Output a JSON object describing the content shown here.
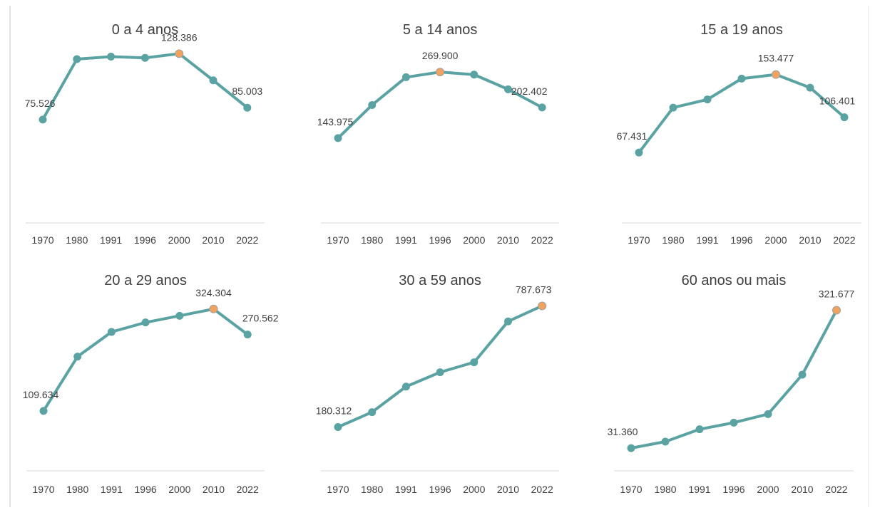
{
  "colors": {
    "line": "#5ba3a3",
    "point": "#5ba3a3",
    "highlight": "#f0a35e",
    "axis": "#d9d9d9",
    "text": "#404040"
  },
  "chart_data": [
    {
      "type": "line",
      "title": "0 a 4 anos",
      "x": [
        "1970",
        "1980",
        "1991",
        "1996",
        "2000",
        "2010",
        "2022"
      ],
      "values": [
        75526,
        124000,
        126000,
        125000,
        128386,
        107000,
        85003
      ],
      "labels": [
        "75.526",
        "",
        "",
        "",
        "128.386",
        "",
        "85.003"
      ],
      "highlight_index": 4,
      "ylim": [
        0,
        160000
      ],
      "grid": false,
      "legend": "none"
    },
    {
      "type": "line",
      "title": "5 a 14 anos",
      "x": [
        "1970",
        "1980",
        "1991",
        "1996",
        "2000",
        "2010",
        "2022"
      ],
      "values": [
        143975,
        207000,
        260000,
        269900,
        265000,
        237000,
        202402
      ],
      "labels": [
        "143.975",
        "",
        "",
        "269.900",
        "",
        "",
        "202.402"
      ],
      "highlight_index": 3,
      "ylim": [
        0,
        380000
      ],
      "grid": false,
      "legend": "none"
    },
    {
      "type": "line",
      "title": "15 a 19 anos",
      "x": [
        "1970",
        "1980",
        "1991",
        "1996",
        "2000",
        "2010",
        "2022"
      ],
      "values": [
        67431,
        117000,
        126000,
        149000,
        153477,
        139000,
        106401
      ],
      "labels": [
        "67.431",
        "",
        "",
        "",
        "153.477",
        "",
        "106.401"
      ],
      "highlight_index": 4,
      "ylim": [
        0,
        220000
      ],
      "grid": false,
      "legend": "none"
    },
    {
      "type": "line",
      "title": "20 a 29 anos",
      "x": [
        "1970",
        "1980",
        "1991",
        "1996",
        "2000",
        "2010",
        "2022"
      ],
      "values": [
        109634,
        224000,
        276000,
        296000,
        310000,
        324304,
        270562
      ],
      "labels": [
        "109.634",
        "",
        "",
        "",
        "",
        "324.304",
        "270.562"
      ],
      "highlight_index": 5,
      "ylim": [
        0,
        420000
      ],
      "grid": false,
      "legend": "none"
    },
    {
      "type": "line",
      "title": "30 a 59 anos",
      "x": [
        "1970",
        "1980",
        "1991",
        "1996",
        "2000",
        "2010",
        "2022"
      ],
      "values": [
        180312,
        255000,
        383000,
        455000,
        505000,
        710000,
        787673
      ],
      "labels": [
        "180.312",
        "",
        "",
        "",
        "",
        "",
        "787.673"
      ],
      "highlight_index": 6,
      "ylim": [
        0,
        1000000
      ],
      "grid": false,
      "legend": "none"
    },
    {
      "type": "line",
      "title": "60 anos ou mais",
      "x": [
        "1970",
        "1980",
        "1991",
        "1996",
        "2000",
        "2010",
        "2022"
      ],
      "values": [
        31360,
        45000,
        71000,
        85000,
        103000,
        186000,
        321677
      ],
      "labels": [
        "31.360",
        "",
        "",
        "",
        "",
        "",
        "321.677"
      ],
      "highlight_index": 6,
      "ylim": [
        0,
        420000
      ],
      "grid": false,
      "legend": "none"
    }
  ]
}
